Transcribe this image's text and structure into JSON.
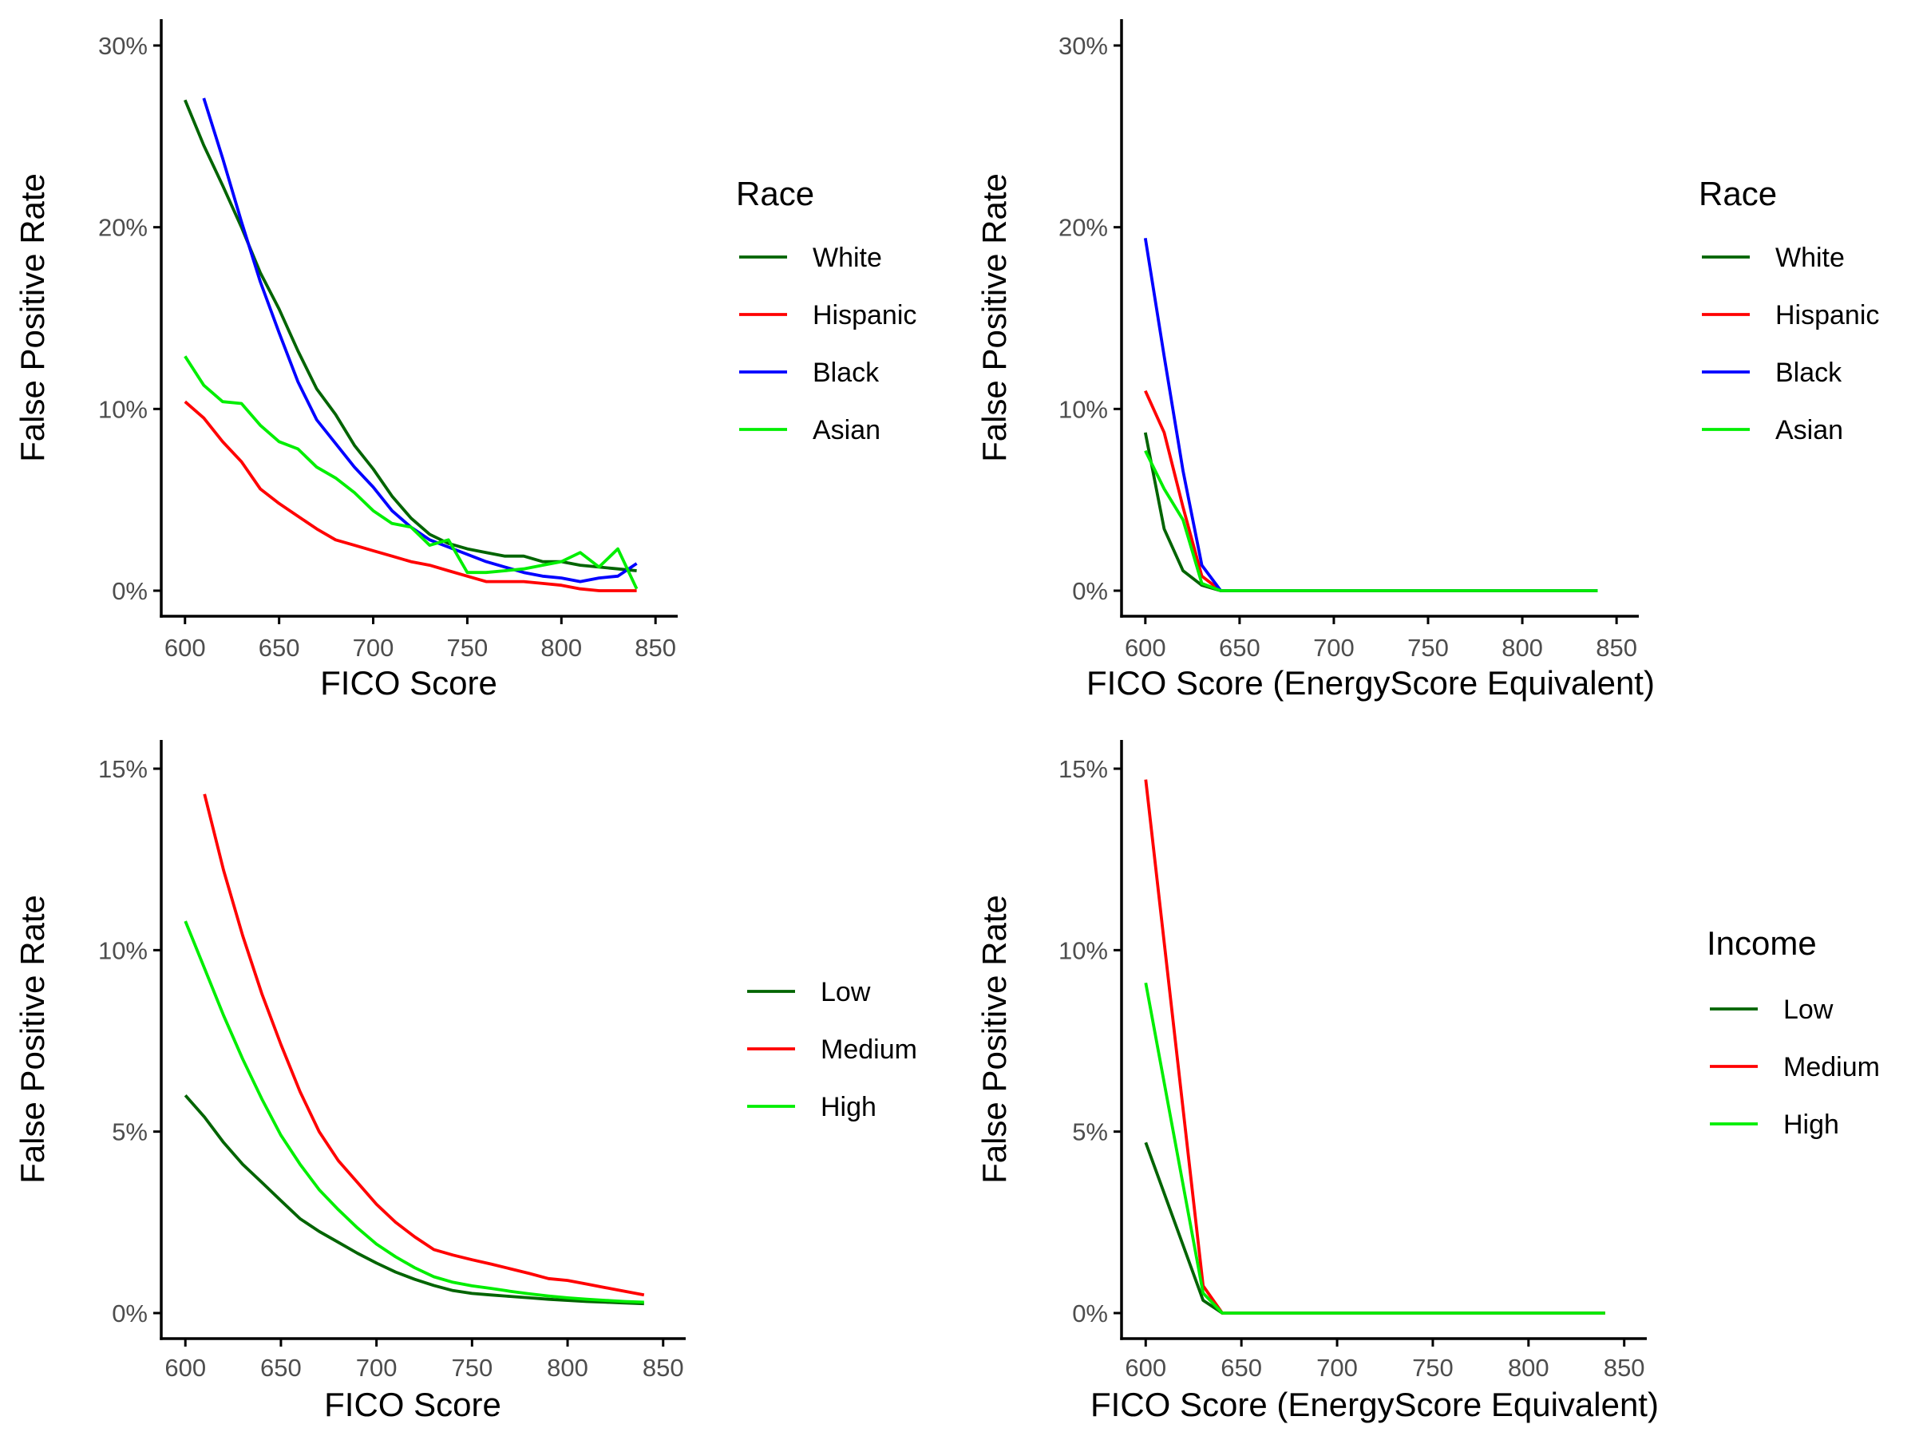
{
  "chart_data": [
    {
      "type": "line",
      "xlabel": "FICO Score",
      "ylabel": "False Positive Rate",
      "xlim": [
        600,
        850
      ],
      "ylim": [
        0,
        30
      ],
      "xticks": [
        "600",
        "650",
        "700",
        "750",
        "800",
        "850"
      ],
      "yticks": [
        "0%",
        "10%",
        "20%",
        "30%"
      ],
      "legend": {
        "title": "Race",
        "placement": "right"
      },
      "series": [
        {
          "name": "White",
          "color": "#006400",
          "x": [
            600,
            610,
            620,
            630,
            640,
            650,
            660,
            670,
            680,
            690,
            700,
            710,
            720,
            730,
            740,
            750,
            760,
            770,
            780,
            790,
            800,
            810,
            820,
            830,
            840
          ],
          "y": [
            27.0,
            24.5,
            22.3,
            20.0,
            17.5,
            15.5,
            13.2,
            11.1,
            9.7,
            8.0,
            6.7,
            5.2,
            4.0,
            3.1,
            2.6,
            2.3,
            2.1,
            1.9,
            1.9,
            1.6,
            1.6,
            1.4,
            1.3,
            1.2,
            1.1
          ]
        },
        {
          "name": "Hispanic",
          "color": "#FF0000",
          "x": [
            600,
            610,
            620,
            630,
            640,
            650,
            660,
            670,
            680,
            690,
            700,
            710,
            720,
            730,
            740,
            750,
            760,
            770,
            780,
            790,
            800,
            810,
            820,
            830,
            840
          ],
          "y": [
            10.4,
            9.5,
            8.2,
            7.1,
            5.6,
            4.8,
            4.1,
            3.4,
            2.8,
            2.5,
            2.2,
            1.9,
            1.6,
            1.4,
            1.1,
            0.8,
            0.5,
            0.5,
            0.5,
            0.4,
            0.3,
            0.1,
            0.0,
            0.0,
            0.0
          ]
        },
        {
          "name": "Black",
          "color": "#0000FF",
          "x": [
            610,
            620,
            630,
            640,
            650,
            660,
            670,
            680,
            690,
            700,
            710,
            720,
            730,
            740,
            750,
            760,
            770,
            780,
            790,
            800,
            810,
            820,
            830,
            840
          ],
          "y": [
            27.1,
            23.8,
            20.3,
            17.0,
            14.2,
            11.5,
            9.4,
            8.1,
            6.8,
            5.7,
            4.4,
            3.5,
            2.8,
            2.4,
            2.0,
            1.6,
            1.3,
            1.0,
            0.8,
            0.7,
            0.5,
            0.7,
            0.8,
            1.5
          ]
        },
        {
          "name": "Asian",
          "color": "#00EE00",
          "x": [
            600,
            610,
            620,
            630,
            640,
            650,
            660,
            670,
            680,
            690,
            700,
            710,
            720,
            730,
            740,
            750,
            760,
            770,
            780,
            790,
            800,
            810,
            820,
            830,
            840
          ],
          "y": [
            12.9,
            11.3,
            10.4,
            10.3,
            9.1,
            8.2,
            7.8,
            6.8,
            6.2,
            5.4,
            4.4,
            3.7,
            3.5,
            2.5,
            2.8,
            1.0,
            1.0,
            1.1,
            1.2,
            1.4,
            1.6,
            2.1,
            1.3,
            2.3,
            0.1
          ]
        }
      ]
    },
    {
      "type": "line",
      "xlabel": "FICO Score (EnergyScore Equivalent)",
      "ylabel": "False Positive Rate",
      "xlim": [
        600,
        850
      ],
      "ylim": [
        0,
        30
      ],
      "xticks": [
        "600",
        "650",
        "700",
        "750",
        "800",
        "850"
      ],
      "yticks": [
        "0%",
        "10%",
        "20%",
        "30%"
      ],
      "legend": {
        "title": "Race",
        "placement": "right"
      },
      "series": [
        {
          "name": "White",
          "color": "#006400",
          "x": [
            600,
            610,
            620,
            630,
            640,
            650,
            700,
            750,
            800,
            840
          ],
          "y": [
            8.7,
            3.4,
            1.1,
            0.3,
            0.0,
            0.0,
            0.0,
            0.0,
            0.0,
            0.0
          ]
        },
        {
          "name": "Hispanic",
          "color": "#FF0000",
          "x": [
            600,
            610,
            620,
            630,
            640,
            650,
            700,
            750,
            800,
            840
          ],
          "y": [
            11.0,
            8.7,
            4.6,
            0.8,
            0.0,
            0.0,
            0.0,
            0.0,
            0.0,
            0.0
          ]
        },
        {
          "name": "Black",
          "color": "#0000FF",
          "x": [
            600,
            610,
            620,
            630,
            640,
            650,
            700,
            750,
            800,
            840
          ],
          "y": [
            19.4,
            12.9,
            6.6,
            1.4,
            0.0,
            0.0,
            0.0,
            0.0,
            0.0,
            0.0
          ]
        },
        {
          "name": "Asian",
          "color": "#00EE00",
          "x": [
            600,
            610,
            620,
            630,
            640,
            650,
            700,
            750,
            800,
            840
          ],
          "y": [
            7.7,
            5.6,
            3.9,
            0.4,
            0.0,
            0.0,
            0.0,
            0.0,
            0.0,
            0.0
          ]
        }
      ]
    },
    {
      "type": "line",
      "xlabel": "FICO Score",
      "ylabel": "False Positive Rate",
      "xlim": [
        600,
        850
      ],
      "ylim": [
        0,
        15
      ],
      "xticks": [
        "600",
        "650",
        "700",
        "750",
        "800",
        "850"
      ],
      "yticks": [
        "0%",
        "5%",
        "10%",
        "15%"
      ],
      "legend": {
        "title": "",
        "placement": "right"
      },
      "series": [
        {
          "name": "Low",
          "color": "#006400",
          "x": [
            600,
            610,
            620,
            630,
            640,
            650,
            660,
            670,
            680,
            690,
            700,
            710,
            720,
            730,
            740,
            750,
            760,
            770,
            780,
            790,
            800,
            810,
            820,
            830,
            840
          ],
          "y": [
            6.0,
            5.4,
            4.7,
            4.1,
            3.6,
            3.1,
            2.6,
            2.25,
            1.95,
            1.65,
            1.38,
            1.13,
            0.93,
            0.76,
            0.62,
            0.54,
            0.5,
            0.46,
            0.42,
            0.38,
            0.35,
            0.32,
            0.3,
            0.28,
            0.26
          ]
        },
        {
          "name": "Medium",
          "color": "#FF0000",
          "x": [
            610,
            620,
            630,
            640,
            650,
            660,
            670,
            680,
            690,
            700,
            710,
            720,
            730,
            740,
            750,
            760,
            770,
            780,
            790,
            800,
            810,
            820,
            830,
            840
          ],
          "y": [
            14.3,
            12.2,
            10.4,
            8.8,
            7.4,
            6.1,
            5.0,
            4.2,
            3.6,
            3.0,
            2.5,
            2.1,
            1.75,
            1.6,
            1.47,
            1.35,
            1.22,
            1.09,
            0.95,
            0.9,
            0.8,
            0.7,
            0.6,
            0.5
          ]
        },
        {
          "name": "High",
          "color": "#00EE00",
          "x": [
            600,
            610,
            620,
            630,
            640,
            650,
            660,
            670,
            680,
            690,
            700,
            710,
            720,
            730,
            740,
            750,
            760,
            770,
            780,
            790,
            800,
            810,
            820,
            830,
            840
          ],
          "y": [
            10.8,
            9.5,
            8.2,
            7.0,
            5.9,
            4.9,
            4.1,
            3.4,
            2.85,
            2.35,
            1.9,
            1.55,
            1.25,
            1.0,
            0.85,
            0.75,
            0.68,
            0.6,
            0.53,
            0.47,
            0.42,
            0.38,
            0.35,
            0.32,
            0.3
          ]
        }
      ]
    },
    {
      "type": "line",
      "xlabel": "FICO Score (EnergyScore Equivalent)",
      "ylabel": "False Positive Rate",
      "xlim": [
        600,
        850
      ],
      "ylim": [
        0,
        15
      ],
      "xticks": [
        "600",
        "650",
        "700",
        "750",
        "800",
        "850"
      ],
      "yticks": [
        "0%",
        "5%",
        "10%",
        "15%"
      ],
      "legend": {
        "title": "Income",
        "placement": "right"
      },
      "series": [
        {
          "name": "Low",
          "color": "#006400",
          "x": [
            600,
            630,
            640,
            650,
            700,
            750,
            800,
            840
          ],
          "y": [
            4.7,
            0.35,
            0.0,
            0.0,
            0.0,
            0.0,
            0.0,
            0.0
          ]
        },
        {
          "name": "Medium",
          "color": "#FF0000",
          "x": [
            600,
            630,
            640,
            650,
            700,
            750,
            800,
            840
          ],
          "y": [
            14.7,
            0.75,
            0.0,
            0.0,
            0.0,
            0.0,
            0.0,
            0.0
          ]
        },
        {
          "name": "High",
          "color": "#00EE00",
          "x": [
            600,
            630,
            640,
            650,
            700,
            750,
            800,
            840
          ],
          "y": [
            9.1,
            0.55,
            0.0,
            0.0,
            0.0,
            0.0,
            0.0,
            0.0
          ]
        }
      ]
    }
  ]
}
